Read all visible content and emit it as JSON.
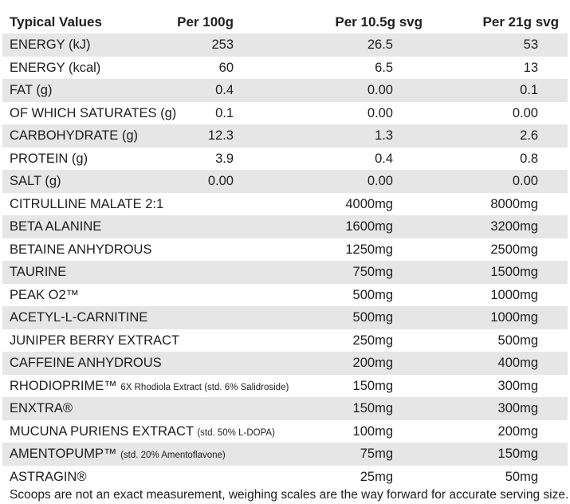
{
  "header": {
    "label": "Typical Values",
    "col1": "Per 100g",
    "col2": "Per 10.5g svg",
    "col3": "Per 21g svg"
  },
  "rows": [
    {
      "label": "ENERGY (kJ)",
      "note": "",
      "v1": "253",
      "v2": "26.5",
      "v3": "53"
    },
    {
      "label": "ENERGY (kcal)",
      "note": "",
      "v1": "60",
      "v2": "6.5",
      "v3": "13"
    },
    {
      "label": "FAT (g)",
      "note": "",
      "v1": "0.4",
      "v2": "0.00",
      "v3": "0.1"
    },
    {
      "label": "OF WHICH SATURATES (g)",
      "note": "",
      "v1": "0.1",
      "v2": "0.00",
      "v3": "0.00"
    },
    {
      "label": "CARBOHYDRATE (g)",
      "note": "",
      "v1": "12.3",
      "v2": "1.3",
      "v3": "2.6"
    },
    {
      "label": "PROTEIN (g)",
      "note": "",
      "v1": "3.9",
      "v2": "0.4",
      "v3": "0.8"
    },
    {
      "label": "SALT (g)",
      "note": "",
      "v1": "0.00",
      "v2": "0.00",
      "v3": "0.00"
    },
    {
      "label": "CITRULLINE MALATE  2:1",
      "note": "",
      "v1": "",
      "v2": "4000mg",
      "v3": "8000mg"
    },
    {
      "label": "BETA ALANINE",
      "note": "",
      "v1": "",
      "v2": "1600mg",
      "v3": "3200mg"
    },
    {
      "label": "BETAINE ANHYDROUS",
      "note": "",
      "v1": "",
      "v2": "1250mg",
      "v3": "2500mg"
    },
    {
      "label": "TAURINE",
      "note": "",
      "v1": "",
      "v2": "750mg",
      "v3": "1500mg"
    },
    {
      "label": "PEAK O2™",
      "note": "",
      "v1": "",
      "v2": "500mg",
      "v3": "1000mg"
    },
    {
      "label": "ACETYL-L-CARNITINE",
      "note": "",
      "v1": "",
      "v2": "500mg",
      "v3": "1000mg"
    },
    {
      "label": "JUNIPER BERRY EXTRACT",
      "note": "",
      "v1": "",
      "v2": "250mg",
      "v3": "500mg"
    },
    {
      "label": "CAFFEINE ANHYDROUS",
      "note": "",
      "v1": "",
      "v2": "200mg",
      "v3": "400mg"
    },
    {
      "label": "RHODIOPRIME™",
      "note": "6X Rhodiola Extract (std. 6% Salidroside)",
      "v1": "",
      "v2": "150mg",
      "v3": "300mg"
    },
    {
      "label": "ENXTRA®",
      "note": "",
      "v1": "",
      "v2": "150mg",
      "v3": "300mg"
    },
    {
      "label": "MUCUNA PURIENS EXTRACT",
      "note": "(std. 50% L-DOPA)",
      "v1": "",
      "v2": "100mg",
      "v3": "200mg"
    },
    {
      "label": "AMENTOPUMP™",
      "note": "(std. 20% Amentoflavone)",
      "v1": "",
      "v2": "75mg",
      "v3": "150mg"
    },
    {
      "label": "ASTRAGIN®",
      "note": "",
      "v1": "",
      "v2": "25mg",
      "v3": "50mg"
    }
  ],
  "footnote": "Scoops are not an exact measurement, weighing scales are the way forward for accurate serving size.",
  "colors": {
    "stripe": "#e6e6e6",
    "text": "#1e1e1e"
  }
}
